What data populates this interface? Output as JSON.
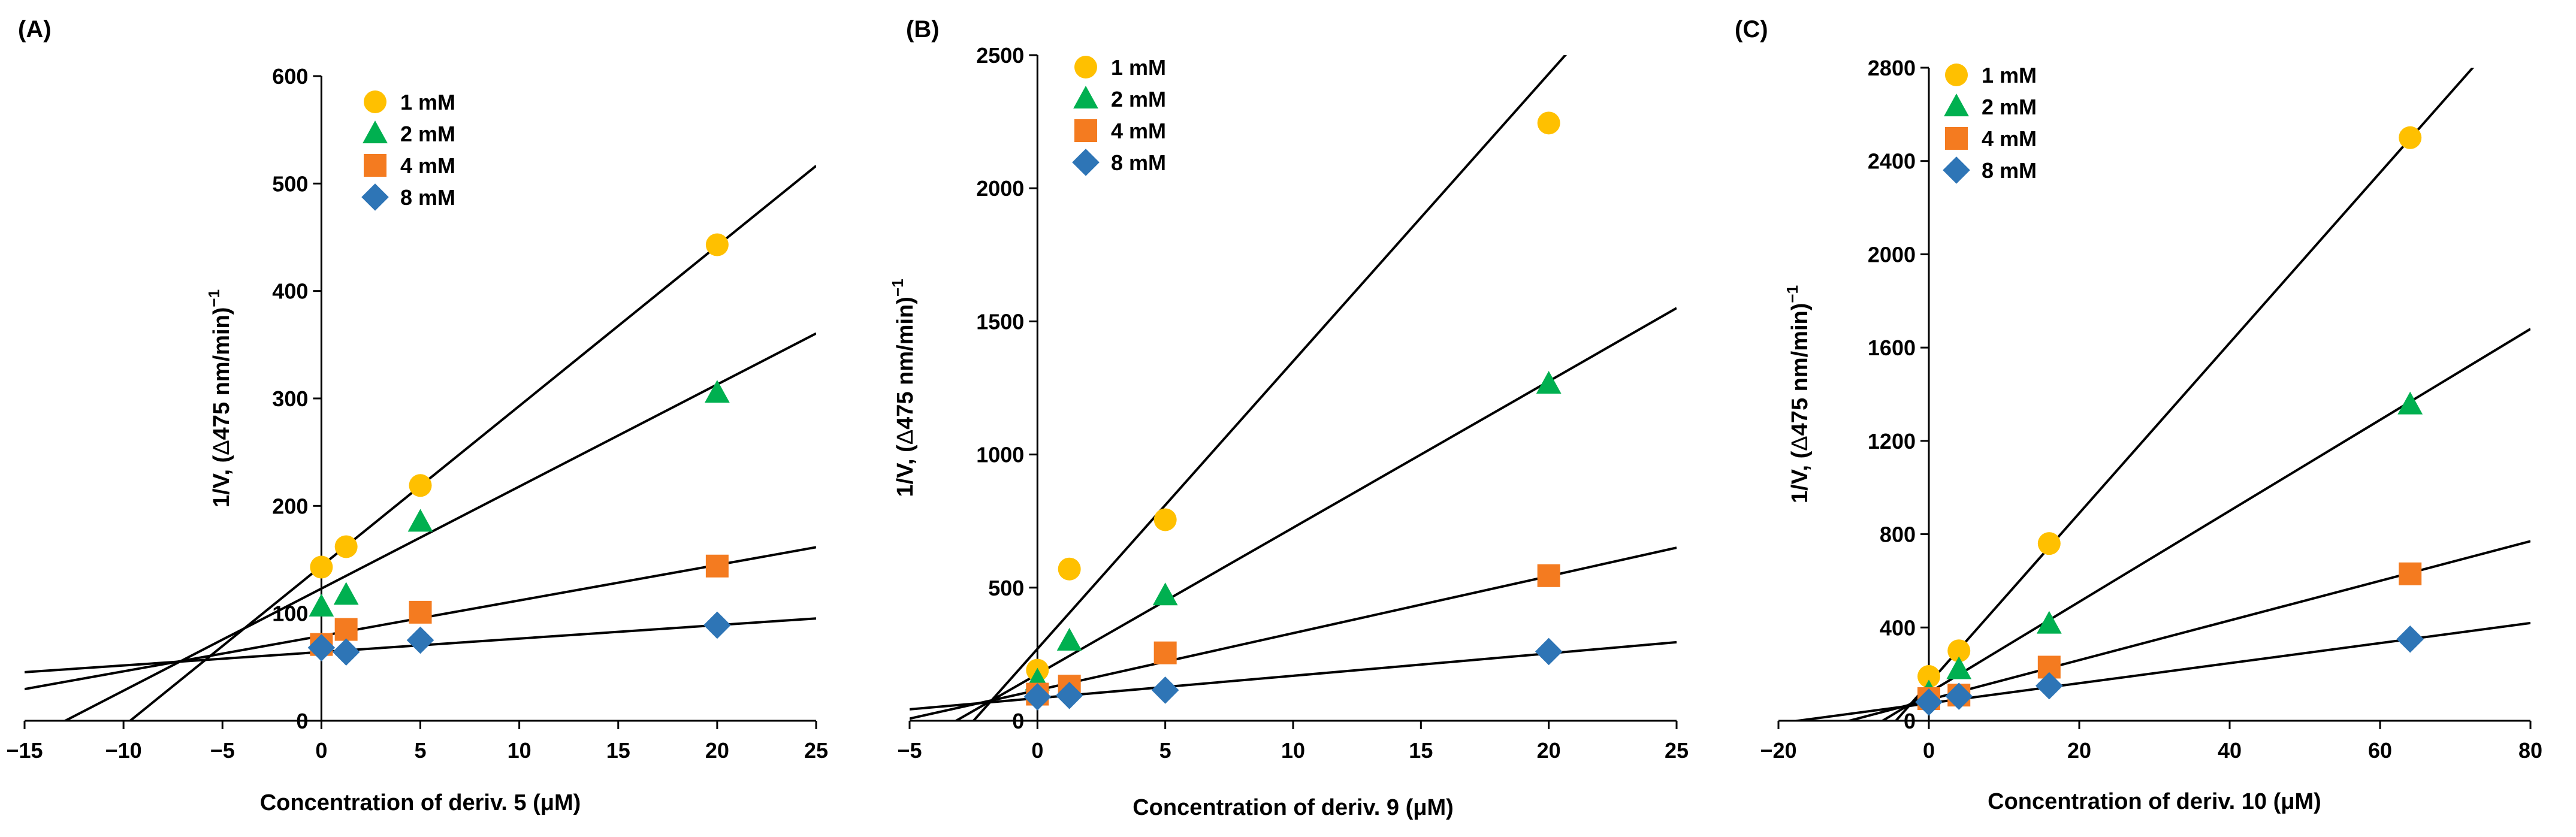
{
  "chart_data": [
    {
      "type": "scatter",
      "panel_label": "(A)",
      "xlabel": "Concentration of deriv. 5 (μM)",
      "ylabel_prefix": "1/V, (",
      "ylabel_delta": "Δ",
      "ylabel_suffix": "475 nm/min)",
      "ylabel_exp": "−1",
      "xlim": [
        -15,
        25
      ],
      "ylim": [
        0,
        600
      ],
      "xticks": [
        -15,
        -10,
        -5,
        0,
        5,
        10,
        15,
        20,
        25
      ],
      "xtick_labels": [
        "−15",
        "−10",
        "−5",
        "0",
        "5",
        "10",
        "15",
        "20",
        "25"
      ],
      "yticks": [
        0,
        100,
        200,
        300,
        400,
        500,
        600
      ],
      "ytick_labels": [
        "0",
        "100",
        "200",
        "300",
        "400",
        "500",
        "600"
      ],
      "legend_position": "top-left",
      "series": [
        {
          "name": "1 mM",
          "marker": "circle",
          "color": "#FFC000",
          "x": [
            0,
            1.25,
            5,
            20
          ],
          "y": [
            143,
            162,
            219,
            443
          ],
          "fit": {
            "slope": 14.9,
            "intercept": 144
          }
        },
        {
          "name": "2 mM",
          "marker": "triangle",
          "color": "#00B050",
          "x": [
            0,
            1.25,
            5,
            20
          ],
          "y": [
            106,
            117,
            185,
            305
          ],
          "fit": {
            "slope": 9.5,
            "intercept": 123
          }
        },
        {
          "name": "4 mM",
          "marker": "square",
          "color": "#F47B20",
          "x": [
            0,
            1.25,
            5,
            20
          ],
          "y": [
            71,
            85,
            101,
            144
          ],
          "fit": {
            "slope": 3.3,
            "intercept": 79
          }
        },
        {
          "name": "8 mM",
          "marker": "diamond",
          "color": "#2E75B6",
          "x": [
            0,
            1.25,
            5,
            20
          ],
          "y": [
            68,
            64,
            75,
            89
          ],
          "fit": {
            "slope": 1.25,
            "intercept": 64
          }
        }
      ]
    },
    {
      "type": "scatter",
      "panel_label": "(B)",
      "xlabel": "Concentration of deriv. 9 (μM)",
      "ylabel_prefix": "1/V, (",
      "ylabel_delta": "Δ",
      "ylabel_suffix": "475 nm/min)",
      "ylabel_exp": "−1",
      "xlim": [
        -5,
        25
      ],
      "ylim": [
        0,
        2500
      ],
      "xticks": [
        -5,
        0,
        5,
        10,
        15,
        20,
        25
      ],
      "xtick_labels": [
        "−5",
        "0",
        "5",
        "10",
        "15",
        "20",
        "25"
      ],
      "yticks": [
        0,
        500,
        1000,
        1500,
        2000,
        2500
      ],
      "ytick_labels": [
        "0",
        "500",
        "1000",
        "1500",
        "2000",
        "2500"
      ],
      "legend_position": "top-left",
      "series": [
        {
          "name": "1 mM",
          "marker": "circle",
          "color": "#FFC000",
          "x": [
            0,
            1.25,
            5,
            20
          ],
          "y": [
            190,
            570,
            755,
            2245
          ],
          "fit": {
            "slope": 108,
            "intercept": 270
          }
        },
        {
          "name": "2 mM",
          "marker": "triangle",
          "color": "#00B050",
          "x": [
            0,
            1.25,
            5,
            20
          ],
          "y": [
            150,
            300,
            470,
            1265
          ],
          "fit": {
            "slope": 55,
            "intercept": 175
          }
        },
        {
          "name": "4 mM",
          "marker": "square",
          "color": "#F47B20",
          "x": [
            0,
            1.25,
            5,
            20
          ],
          "y": [
            100,
            130,
            255,
            545
          ],
          "fit": {
            "slope": 21.4,
            "intercept": 115
          }
        },
        {
          "name": "8 mM",
          "marker": "diamond",
          "color": "#2E75B6",
          "x": [
            0,
            1.25,
            5,
            20
          ],
          "y": [
            90,
            95,
            115,
            260
          ],
          "fit": {
            "slope": 8.4,
            "intercept": 85
          }
        }
      ]
    },
    {
      "type": "scatter",
      "panel_label": "(C)",
      "xlabel": "Concentration of deriv. 10 (μM)",
      "ylabel_prefix": "1/V, (",
      "ylabel_delta": "Δ",
      "ylabel_suffix": "475 nm/min)",
      "ylabel_exp": "−1",
      "xlim": [
        -20,
        80
      ],
      "ylim": [
        0,
        2800
      ],
      "xticks": [
        -20,
        0,
        20,
        40,
        60,
        80
      ],
      "xtick_labels": [
        "−20",
        "0",
        "20",
        "40",
        "60",
        "80"
      ],
      "yticks": [
        0,
        400,
        800,
        1200,
        1600,
        2000,
        2400,
        2800
      ],
      "ytick_labels": [
        "0",
        "400",
        "800",
        "1200",
        "1600",
        "2000",
        "2400",
        "2800"
      ],
      "legend_position": "top-left",
      "series": [
        {
          "name": "1 mM",
          "marker": "circle",
          "color": "#FFC000",
          "x": [
            0,
            4,
            16,
            64
          ],
          "y": [
            190,
            300,
            760,
            2500
          ],
          "fit": {
            "slope": 36.5,
            "intercept": 160
          }
        },
        {
          "name": "2 mM",
          "marker": "triangle",
          "color": "#00B050",
          "x": [
            0,
            4,
            16,
            64
          ],
          "y": [
            120,
            220,
            415,
            1355
          ],
          "fit": {
            "slope": 19.5,
            "intercept": 120
          }
        },
        {
          "name": "4 mM",
          "marker": "square",
          "color": "#F47B20",
          "x": [
            0,
            4,
            16,
            64
          ],
          "y": [
            95,
            110,
            230,
            630
          ],
          "fit": {
            "slope": 8.5,
            "intercept": 90
          }
        },
        {
          "name": "8 mM",
          "marker": "diamond",
          "color": "#2E75B6",
          "x": [
            0,
            4,
            16,
            64
          ],
          "y": [
            80,
            105,
            150,
            350
          ],
          "fit": {
            "slope": 4.3,
            "intercept": 75
          }
        }
      ]
    }
  ]
}
